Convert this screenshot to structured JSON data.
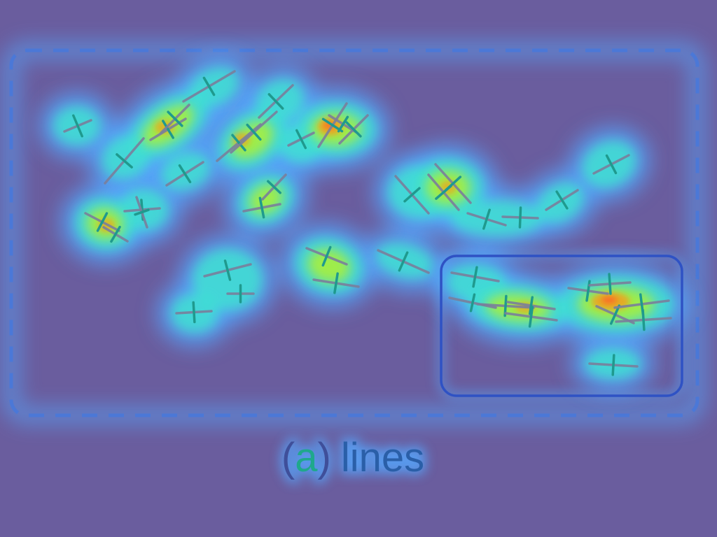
{
  "caption": {
    "paren_open": "(",
    "letter": "a",
    "paren_close": ")",
    "word": "lines"
  },
  "colors": {
    "background": "#6a5d9e",
    "glow_outer": "#54a8ff",
    "glow_mid": "#3ee0d2",
    "glow_inner": "#a8f03c",
    "hotspot": "#f0a020",
    "hotspot_core": "#ff6020",
    "frame_dashed": "#4a78d8",
    "highlight_box": "#2f52c4",
    "line_mark": "#7a7f9c",
    "cross_mark": "#1f9a8e"
  },
  "graphic": {
    "mark_count": 53,
    "hotspot_count": 5,
    "frame_style": "dashed-rounded",
    "highlight_region": "bottom-right",
    "icon": "line-segment-heatmap-icon"
  }
}
